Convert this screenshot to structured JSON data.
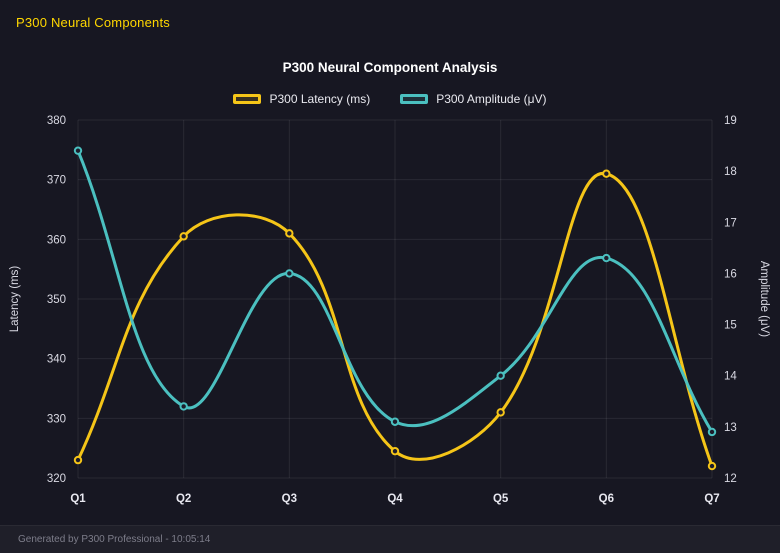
{
  "header": {
    "title": "P300 Neural Components"
  },
  "footer": {
    "text": "Generated by P300 Professional - 10:05:14"
  },
  "colors": {
    "background": "#171722",
    "header_title": "#ffd700",
    "latency_line": "#f5c518",
    "amplitude_line": "#4bc0c0",
    "grid": "rgba(255,255,255,0.08)",
    "tick_text": "#d9d9e3"
  },
  "chart_data": {
    "type": "line",
    "title": "P300 Neural Component Analysis",
    "categories": [
      "Q1",
      "Q2",
      "Q3",
      "Q4",
      "Q5",
      "Q6",
      "Q7"
    ],
    "series": [
      {
        "name": "P300 Latency (ms)",
        "axis": "left",
        "color": "#f5c518",
        "values": [
          323,
          360.5,
          361,
          324.5,
          331,
          371,
          322
        ]
      },
      {
        "name": "P300 Amplitude (μV)",
        "axis": "right",
        "color": "#4bc0c0",
        "values": [
          18.4,
          13.4,
          16,
          13.1,
          14,
          16.3,
          12.9
        ]
      }
    ],
    "left_axis": {
      "label": "Latency (ms)",
      "min": 320,
      "max": 380,
      "ticks": [
        320,
        330,
        340,
        350,
        360,
        370,
        380
      ]
    },
    "right_axis": {
      "label": "Amplitude (μV)",
      "min": 12,
      "max": 19,
      "ticks": [
        12,
        13,
        14,
        15,
        16,
        17,
        18,
        19
      ]
    },
    "grid": true,
    "legend_position": "top",
    "curve_tension": 0.4
  }
}
